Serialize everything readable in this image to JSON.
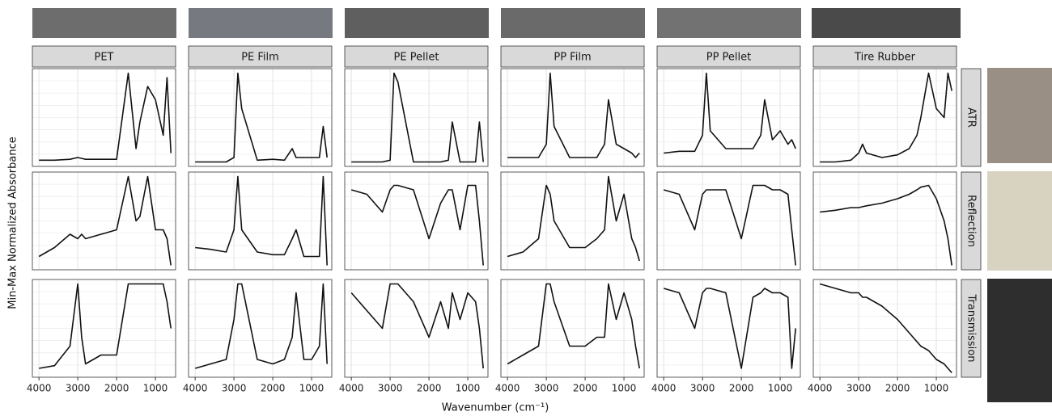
{
  "chart_data": {
    "type": "line",
    "x_label": "Wavenumber (cm⁻¹)",
    "y_label": "Min-Max Normalized Absorbance",
    "color": "#111111",
    "grid": true,
    "xlim": [
      4170,
      480
    ],
    "ylim": [
      -0.05,
      1.05
    ],
    "xticks": [
      4000,
      3000,
      2000,
      1000
    ],
    "x": [
      4000,
      3600,
      3200,
      3000,
      2900,
      2800,
      2400,
      2000,
      1700,
      1500,
      1400,
      1200,
      1000,
      800,
      700,
      600
    ],
    "columns": [
      "PET",
      "PE Film",
      "PE Pellet",
      "PP Film",
      "PP Pellet",
      "Tire Rubber"
    ],
    "rows": [
      {
        "name": "ATR",
        "panels": [
          [
            0.02,
            0.02,
            0.03,
            0.05,
            0.04,
            0.03,
            0.03,
            0.03,
            1.0,
            0.15,
            0.45,
            0.85,
            0.7,
            0.3,
            0.95,
            0.1
          ],
          [
            0,
            0,
            0,
            0.05,
            1.0,
            0.6,
            0.02,
            0.03,
            0.02,
            0.15,
            0.05,
            0.05,
            0.05,
            0.05,
            0.4,
            0.05
          ],
          [
            0,
            0,
            0,
            0.02,
            1.0,
            0.9,
            0,
            0,
            0,
            0.02,
            0.45,
            0,
            0,
            0,
            0.45,
            0
          ],
          [
            0.05,
            0.05,
            0.05,
            0.2,
            1.0,
            0.4,
            0.05,
            0.05,
            0.05,
            0.2,
            0.7,
            0.2,
            0.15,
            0.1,
            0.05,
            0.1
          ],
          [
            0.1,
            0.12,
            0.12,
            0.3,
            1.0,
            0.35,
            0.15,
            0.15,
            0.15,
            0.3,
            0.7,
            0.25,
            0.35,
            0.2,
            0.25,
            0.15
          ],
          [
            0,
            0,
            0.02,
            0.1,
            0.2,
            0.1,
            0.05,
            0.08,
            0.15,
            0.3,
            0.5,
            1.0,
            0.6,
            0.5,
            1.0,
            0.8
          ]
        ]
      },
      {
        "name": "Reflection",
        "panels": [
          [
            0.1,
            0.2,
            0.35,
            0.3,
            0.35,
            0.3,
            0.35,
            0.4,
            1.0,
            0.5,
            0.55,
            1.0,
            0.4,
            0.4,
            0.3,
            0.0
          ],
          [
            0.2,
            0.18,
            0.15,
            0.4,
            1.0,
            0.4,
            0.15,
            0.12,
            0.12,
            0.3,
            0.4,
            0.1,
            0.1,
            0.1,
            1.0,
            0.0
          ],
          [
            0.85,
            0.8,
            0.6,
            0.85,
            0.9,
            0.9,
            0.85,
            0.3,
            0.7,
            0.85,
            0.85,
            0.4,
            0.9,
            0.9,
            0.5,
            0.0
          ],
          [
            0.1,
            0.15,
            0.3,
            0.9,
            0.8,
            0.5,
            0.2,
            0.2,
            0.3,
            0.4,
            1.0,
            0.5,
            0.8,
            0.3,
            0.2,
            0.05
          ],
          [
            0.85,
            0.8,
            0.4,
            0.8,
            0.85,
            0.85,
            0.85,
            0.3,
            0.9,
            0.9,
            0.9,
            0.85,
            0.85,
            0.8,
            0.4,
            0.0
          ],
          [
            0.6,
            0.62,
            0.65,
            0.65,
            0.66,
            0.67,
            0.7,
            0.75,
            0.8,
            0.85,
            0.88,
            0.9,
            0.75,
            0.5,
            0.3,
            0.0
          ]
        ]
      },
      {
        "name": "Transmission",
        "panels": [
          [
            0.05,
            0.08,
            0.3,
            1.0,
            0.4,
            0.1,
            0.2,
            0.2,
            1.0,
            1.0,
            1.0,
            1.0,
            1.0,
            1.0,
            0.8,
            0.5
          ],
          [
            0.05,
            0.1,
            0.15,
            0.6,
            1.0,
            1.0,
            0.15,
            0.1,
            0.15,
            0.4,
            0.9,
            0.15,
            0.15,
            0.3,
            1.0,
            0.1
          ],
          [
            0.9,
            0.7,
            0.5,
            1.0,
            1.0,
            1.0,
            0.8,
            0.4,
            0.8,
            0.5,
            0.9,
            0.6,
            0.9,
            0.8,
            0.5,
            0.05
          ],
          [
            0.1,
            0.2,
            0.3,
            1.0,
            1.0,
            0.8,
            0.3,
            0.3,
            0.4,
            0.4,
            1.0,
            0.6,
            0.9,
            0.6,
            0.3,
            0.05
          ],
          [
            0.95,
            0.9,
            0.5,
            0.9,
            0.95,
            0.95,
            0.9,
            0.05,
            0.85,
            0.9,
            0.95,
            0.9,
            0.9,
            0.85,
            0.05,
            0.5
          ],
          [
            1.0,
            0.95,
            0.9,
            0.9,
            0.85,
            0.85,
            0.75,
            0.6,
            0.45,
            0.35,
            0.3,
            0.25,
            0.15,
            0.1,
            0.05,
            0.0
          ]
        ]
      }
    ]
  }
}
